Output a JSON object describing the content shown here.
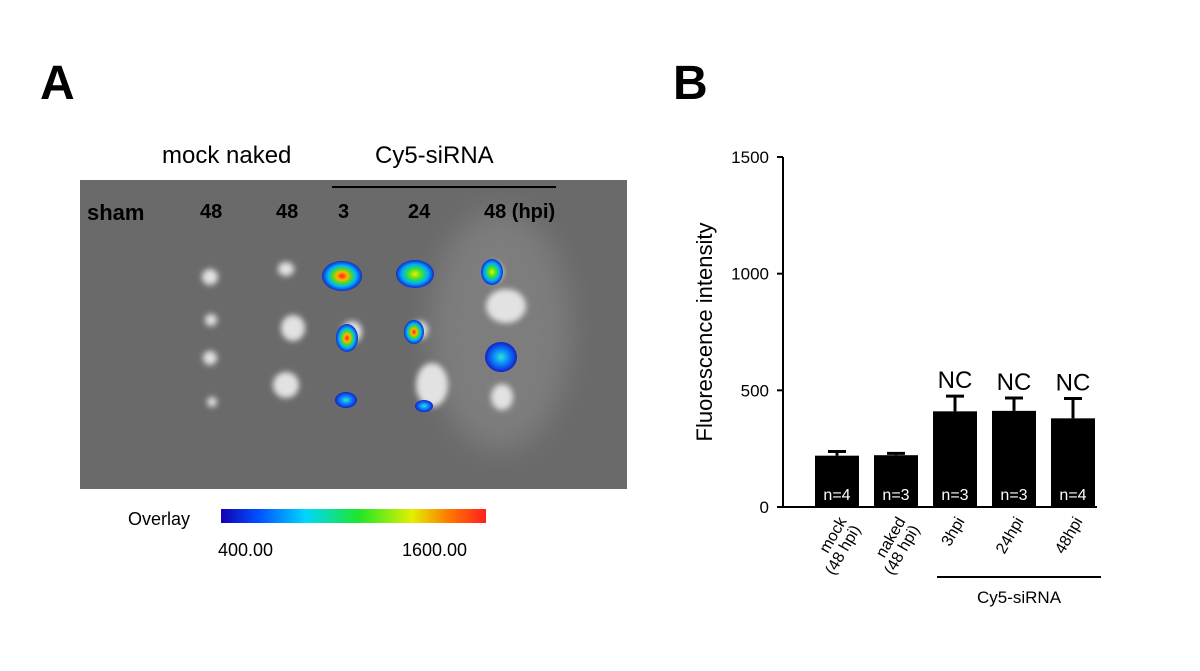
{
  "panel_a": {
    "letter": "A",
    "group_label_left": "mock naked",
    "group_label_right": "Cy5-siRNA",
    "lane_labels": [
      "sham",
      "48",
      "48",
      "3",
      "24",
      "48 (hpi)"
    ],
    "overlay_label": "Overlay",
    "scale_min": "400.00",
    "scale_max": "1600.00",
    "colors": {
      "background": "#6a6a6a",
      "blob": "#e2e2e2"
    }
  },
  "panel_b": {
    "letter": "B"
  },
  "chart_data": {
    "type": "bar",
    "categories": [
      "mock\n(48 hpi)",
      "naked\n(48 hpi)",
      "3hpi",
      "24hpi",
      "48hpi"
    ],
    "category_lines": [
      [
        "mock",
        "(48 hpi)"
      ],
      [
        "naked",
        "(48 hpi)"
      ],
      [
        "3hpi"
      ],
      [
        "24hpi"
      ],
      [
        "48hpi"
      ]
    ],
    "values": [
      220,
      222,
      410,
      412,
      380
    ],
    "errors": [
      18,
      8,
      65,
      55,
      85
    ],
    "n_labels": [
      "n=4",
      "n=3",
      "n=3",
      "n=3",
      "n=4"
    ],
    "annotations": [
      "",
      "",
      "NC",
      "NC",
      "NC"
    ],
    "ylabel": "Fluorescence intensity",
    "ylim": [
      0,
      1500
    ],
    "yticks": [
      0,
      500,
      1000,
      1500
    ],
    "group_label": "Cy5-siRNA",
    "bar_color": "#000000"
  }
}
